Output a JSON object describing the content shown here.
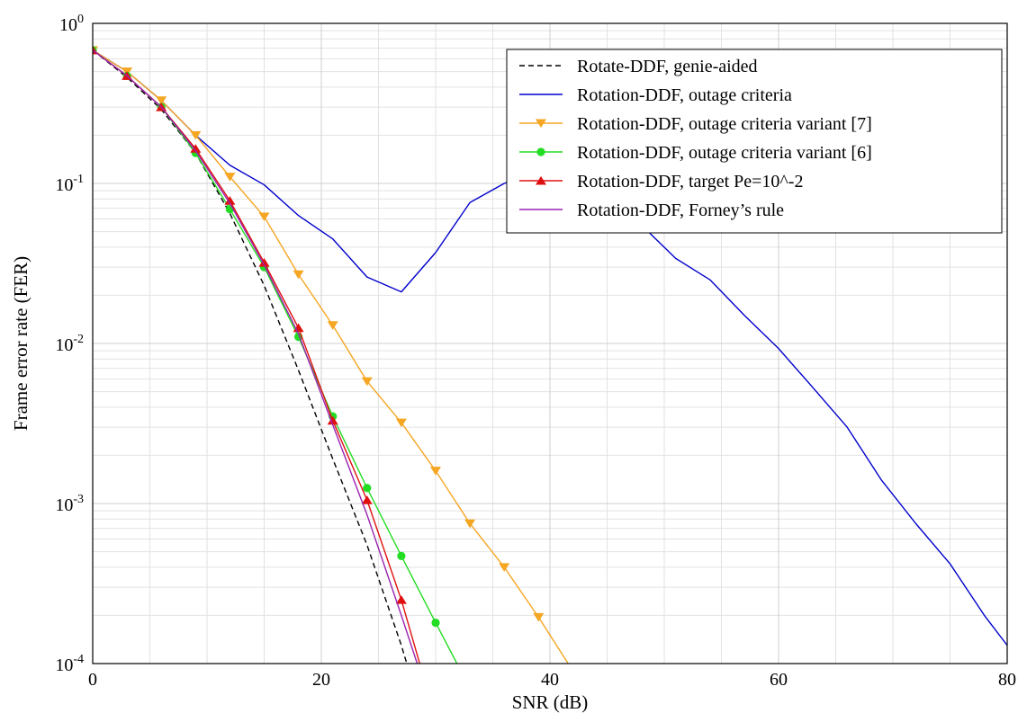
{
  "chart_data": {
    "type": "line",
    "xlabel": "SNR (dB)",
    "ylabel": "Frame error rate (FER)",
    "xlim": [
      0,
      80
    ],
    "ylim": [
      0.0001,
      1
    ],
    "yscale": "log",
    "grid": true,
    "legend_position": "top-right",
    "x_ticks": [
      {
        "value": 0,
        "label": "0"
      },
      {
        "value": 20,
        "label": "20"
      },
      {
        "value": 40,
        "label": "40"
      },
      {
        "value": 60,
        "label": "60"
      },
      {
        "value": 80,
        "label": "80"
      }
    ],
    "y_ticks": [
      {
        "value": 0.0001,
        "base": "10",
        "exp": "-4"
      },
      {
        "value": 0.001,
        "base": "10",
        "exp": "-3"
      },
      {
        "value": 0.01,
        "base": "10",
        "exp": "-2"
      },
      {
        "value": 0.1,
        "base": "10",
        "exp": "-1"
      },
      {
        "value": 1,
        "base": "10",
        "exp": "0"
      }
    ],
    "series": [
      {
        "name": "Rotate-DDF, genie-aided",
        "color": "#000000",
        "dash": "dashed",
        "marker": "none",
        "x": [
          0,
          3,
          6,
          9,
          12,
          15,
          18,
          21,
          24,
          27,
          28
        ],
        "y": [
          0.68,
          0.46,
          0.29,
          0.155,
          0.065,
          0.023,
          0.0068,
          0.0019,
          0.00055,
          0.00013,
          7.5e-05
        ]
      },
      {
        "name": "Rotation-DDF, outage criteria",
        "color": "#0000cc",
        "dash": "solid",
        "marker": "none",
        "x": [
          0,
          3,
          6,
          9,
          12,
          15,
          18,
          21,
          24,
          27,
          30,
          33,
          36,
          39,
          42,
          45,
          48,
          51,
          54,
          57,
          60,
          63,
          66,
          69,
          72,
          75,
          78,
          80
        ],
        "y": [
          0.68,
          0.5,
          0.33,
          0.2,
          0.13,
          0.098,
          0.063,
          0.045,
          0.026,
          0.021,
          0.037,
          0.076,
          0.1,
          0.12,
          0.1,
          0.08,
          0.055,
          0.034,
          0.025,
          0.015,
          0.0093,
          0.0053,
          0.003,
          0.0014,
          0.00075,
          0.00042,
          0.0002,
          0.00013
        ]
      },
      {
        "name": "Rotation-DDF, outage criteria variant [7]",
        "color": "#f5a623",
        "dash": "solid",
        "marker": "triangle-down",
        "x": [
          0,
          3,
          6,
          9,
          12,
          15,
          18,
          21,
          24,
          27,
          30,
          33,
          36,
          39,
          42
        ],
        "y": [
          0.68,
          0.5,
          0.33,
          0.2,
          0.11,
          0.062,
          0.027,
          0.013,
          0.0058,
          0.0032,
          0.0016,
          0.00075,
          0.0004,
          0.000195,
          9e-05
        ]
      },
      {
        "name": "Rotation-DDF, outage criteria variant [6]",
        "color": "#22dd22",
        "dash": "solid",
        "marker": "circle",
        "x": [
          0,
          3,
          6,
          9,
          12,
          15,
          18,
          21,
          24,
          27,
          30,
          33
        ],
        "y": [
          0.68,
          0.47,
          0.3,
          0.155,
          0.069,
          0.03,
          0.011,
          0.0035,
          0.00125,
          0.00047,
          0.00018,
          7e-05
        ]
      },
      {
        "name": "Rotation-DDF, target Pe=10^-2",
        "color": "#e01010",
        "dash": "solid",
        "marker": "triangle-up",
        "x": [
          0,
          3,
          6,
          9,
          12,
          15,
          18,
          21,
          24,
          27,
          29
        ],
        "y": [
          0.68,
          0.47,
          0.3,
          0.165,
          0.078,
          0.032,
          0.0125,
          0.0033,
          0.00105,
          0.00025,
          8e-05
        ]
      },
      {
        "name": "Rotation-DDF, Forney’s rule",
        "color": "#9a20b0",
        "dash": "solid",
        "marker": "none",
        "x": [
          0,
          3,
          6,
          9,
          12,
          15,
          18,
          21,
          24,
          27,
          28.6
        ],
        "y": [
          0.68,
          0.47,
          0.3,
          0.16,
          0.075,
          0.031,
          0.0115,
          0.0031,
          0.00085,
          0.0002,
          9e-05
        ]
      }
    ]
  }
}
